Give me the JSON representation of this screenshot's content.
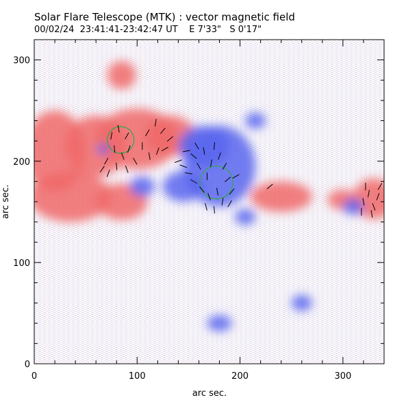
{
  "chart_data": {
    "type": "heatmap",
    "title": "Solar Flare Telescope (MTK) : vector magnetic field",
    "subtitle": "00/02/24  23:41:41-23:42:47 UT    E 7'33\"   S 0'17\"",
    "xlabel": "arc sec.",
    "ylabel": "arc sec.",
    "xlim": [
      0,
      340
    ],
    "ylim": [
      0,
      320
    ],
    "x_ticks": [
      0,
      100,
      200,
      300
    ],
    "y_ticks": [
      0,
      100,
      200,
      300
    ],
    "x_tick_labels": [
      "0",
      "100",
      "200",
      "300"
    ],
    "y_tick_labels": [
      "0",
      "100",
      "200",
      "300"
    ],
    "colors": {
      "positive_polarity": "#f06a6a",
      "negative_polarity": "#5a66ee",
      "circle": "#2fa84a",
      "vector": "#000000"
    },
    "polarity_regions": [
      {
        "polarity": "positive",
        "cx": 20,
        "cy": 210,
        "rx": 30,
        "ry": 40
      },
      {
        "polarity": "positive",
        "cx": 60,
        "cy": 215,
        "rx": 30,
        "ry": 30
      },
      {
        "polarity": "positive",
        "cx": 100,
        "cy": 222,
        "rx": 40,
        "ry": 30
      },
      {
        "polarity": "positive",
        "cx": 132,
        "cy": 225,
        "rx": 25,
        "ry": 20
      },
      {
        "polarity": "positive",
        "cx": 35,
        "cy": 165,
        "rx": 40,
        "ry": 25
      },
      {
        "polarity": "positive",
        "cx": 85,
        "cy": 160,
        "rx": 25,
        "ry": 18
      },
      {
        "polarity": "positive",
        "cx": 85,
        "cy": 285,
        "rx": 14,
        "ry": 14
      },
      {
        "polarity": "positive",
        "cx": 240,
        "cy": 165,
        "rx": 30,
        "ry": 15
      },
      {
        "polarity": "positive",
        "cx": 330,
        "cy": 163,
        "rx": 20,
        "ry": 20
      },
      {
        "polarity": "positive",
        "cx": 300,
        "cy": 162,
        "rx": 15,
        "ry": 10
      },
      {
        "polarity": "negative",
        "cx": 180,
        "cy": 195,
        "rx": 35,
        "ry": 40
      },
      {
        "polarity": "negative",
        "cx": 165,
        "cy": 215,
        "rx": 25,
        "ry": 20
      },
      {
        "polarity": "negative",
        "cx": 145,
        "cy": 175,
        "rx": 20,
        "ry": 15
      },
      {
        "polarity": "negative",
        "cx": 105,
        "cy": 175,
        "rx": 12,
        "ry": 10
      },
      {
        "polarity": "negative",
        "cx": 215,
        "cy": 240,
        "rx": 10,
        "ry": 8
      },
      {
        "polarity": "negative",
        "cx": 205,
        "cy": 145,
        "rx": 10,
        "ry": 8
      },
      {
        "polarity": "negative",
        "cx": 67,
        "cy": 212,
        "rx": 6,
        "ry": 5
      },
      {
        "polarity": "negative",
        "cx": 310,
        "cy": 155,
        "rx": 10,
        "ry": 8
      },
      {
        "polarity": "negative",
        "cx": 260,
        "cy": 60,
        "rx": 10,
        "ry": 8
      },
      {
        "polarity": "negative",
        "cx": 180,
        "cy": 40,
        "rx": 12,
        "ry": 8
      }
    ],
    "circles": [
      {
        "x": 84,
        "y": 221,
        "r": 13
      },
      {
        "x": 177,
        "y": 179,
        "r": 16
      }
    ],
    "vectors": [
      {
        "x": 75,
        "y": 225,
        "angle": 80
      },
      {
        "x": 82,
        "y": 232,
        "angle": 100
      },
      {
        "x": 90,
        "y": 225,
        "angle": 60
      },
      {
        "x": 78,
        "y": 212,
        "angle": 95
      },
      {
        "x": 86,
        "y": 205,
        "angle": 110
      },
      {
        "x": 92,
        "y": 212,
        "angle": 70
      },
      {
        "x": 70,
        "y": 200,
        "angle": 60
      },
      {
        "x": 98,
        "y": 200,
        "angle": 120
      },
      {
        "x": 105,
        "y": 215,
        "angle": 90
      },
      {
        "x": 110,
        "y": 228,
        "angle": 60
      },
      {
        "x": 118,
        "y": 238,
        "angle": 80
      },
      {
        "x": 125,
        "y": 230,
        "angle": 50
      },
      {
        "x": 132,
        "y": 222,
        "angle": 40
      },
      {
        "x": 112,
        "y": 205,
        "angle": 100
      },
      {
        "x": 120,
        "y": 210,
        "angle": 70
      },
      {
        "x": 127,
        "y": 212,
        "angle": 30
      },
      {
        "x": 80,
        "y": 195,
        "angle": 95
      },
      {
        "x": 72,
        "y": 188,
        "angle": 70
      },
      {
        "x": 66,
        "y": 192,
        "angle": 55
      },
      {
        "x": 90,
        "y": 192,
        "angle": 110
      },
      {
        "x": 140,
        "y": 200,
        "angle": 20
      },
      {
        "x": 148,
        "y": 210,
        "angle": 10
      },
      {
        "x": 145,
        "y": 195,
        "angle": 160
      },
      {
        "x": 155,
        "y": 205,
        "angle": 140
      },
      {
        "x": 160,
        "y": 195,
        "angle": 120
      },
      {
        "x": 165,
        "y": 210,
        "angle": 100
      },
      {
        "x": 168,
        "y": 185,
        "angle": 90
      },
      {
        "x": 172,
        "y": 198,
        "angle": 80
      },
      {
        "x": 180,
        "y": 205,
        "angle": 70
      },
      {
        "x": 185,
        "y": 195,
        "angle": 60
      },
      {
        "x": 188,
        "y": 182,
        "angle": 40
      },
      {
        "x": 178,
        "y": 170,
        "angle": 100
      },
      {
        "x": 170,
        "y": 165,
        "angle": 110
      },
      {
        "x": 163,
        "y": 172,
        "angle": 130
      },
      {
        "x": 155,
        "y": 180,
        "angle": 150
      },
      {
        "x": 150,
        "y": 188,
        "angle": 170
      },
      {
        "x": 192,
        "y": 170,
        "angle": 50
      },
      {
        "x": 183,
        "y": 160,
        "angle": 80
      },
      {
        "x": 175,
        "y": 152,
        "angle": 95
      },
      {
        "x": 167,
        "y": 155,
        "angle": 105
      },
      {
        "x": 196,
        "y": 185,
        "angle": 30
      },
      {
        "x": 158,
        "y": 215,
        "angle": 120
      },
      {
        "x": 175,
        "y": 215,
        "angle": 85
      },
      {
        "x": 190,
        "y": 158,
        "angle": 60
      },
      {
        "x": 229,
        "y": 175,
        "angle": 40
      },
      {
        "x": 320,
        "y": 160,
        "angle": 100
      },
      {
        "x": 325,
        "y": 168,
        "angle": 80
      },
      {
        "x": 330,
        "y": 155,
        "angle": 110
      },
      {
        "x": 334,
        "y": 165,
        "angle": 70
      },
      {
        "x": 318,
        "y": 150,
        "angle": 90
      },
      {
        "x": 328,
        "y": 148,
        "angle": 100
      },
      {
        "x": 336,
        "y": 175,
        "angle": 60
      },
      {
        "x": 322,
        "y": 175,
        "angle": 90
      }
    ]
  }
}
